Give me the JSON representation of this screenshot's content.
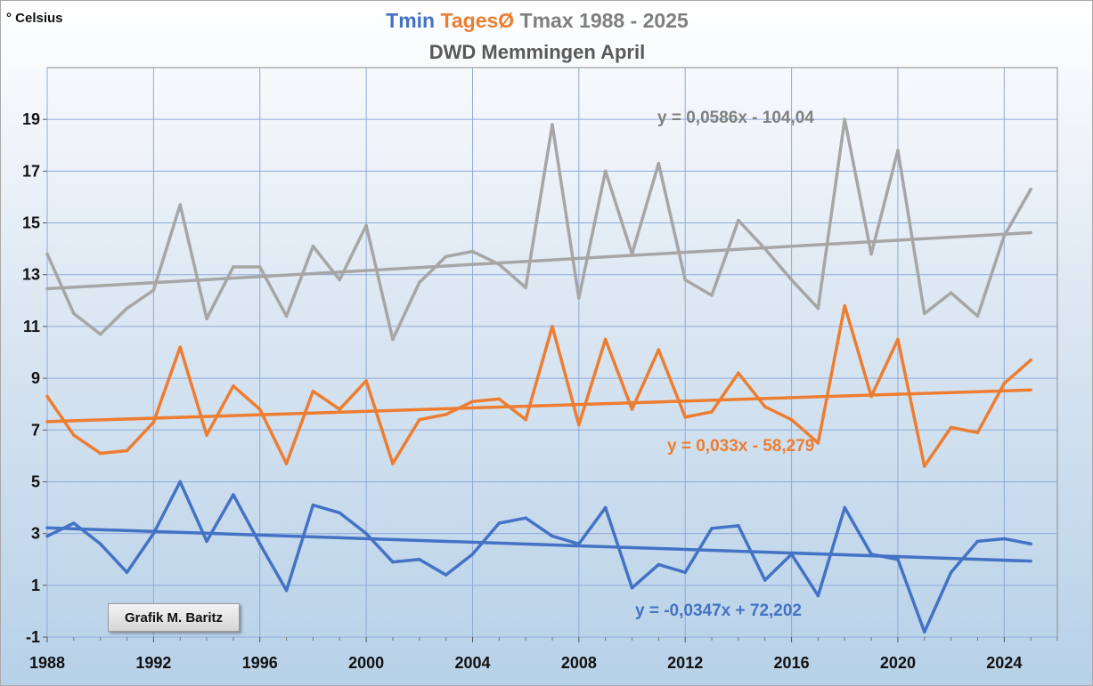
{
  "chart_data": {
    "type": "line",
    "title_parts": [
      {
        "text": "Tmin",
        "color": "#4472c4"
      },
      {
        "text": "TagesØ",
        "color": "#ed7d31"
      },
      {
        "text": "Tmax 1988 - 2025",
        "color": "#7f7f7f"
      }
    ],
    "subtitle": "DWD Memmingen April",
    "ylabel": "° Celsius",
    "xlim": [
      1988,
      2026
    ],
    "ylim": [
      -1,
      21
    ],
    "x_ticks": [
      1988,
      1992,
      1996,
      2000,
      2004,
      2008,
      2012,
      2016,
      2020,
      2024
    ],
    "y_ticks": [
      -1,
      1,
      3,
      5,
      7,
      9,
      11,
      13,
      15,
      17,
      19
    ],
    "grid": true,
    "x": [
      1988,
      1989,
      1990,
      1991,
      1992,
      1993,
      1994,
      1995,
      1996,
      1997,
      1998,
      1999,
      2000,
      2001,
      2002,
      2003,
      2004,
      2005,
      2006,
      2007,
      2008,
      2009,
      2010,
      2011,
      2012,
      2013,
      2014,
      2015,
      2016,
      2017,
      2018,
      2019,
      2020,
      2021,
      2022,
      2023,
      2024,
      2025
    ],
    "series": [
      {
        "key": "tmax",
        "color": "#a6a6a6",
        "values": [
          13.8,
          11.5,
          10.7,
          11.7,
          12.4,
          15.7,
          11.3,
          13.3,
          13.3,
          11.4,
          14.1,
          12.8,
          14.9,
          10.5,
          12.7,
          13.7,
          13.9,
          13.4,
          12.5,
          18.8,
          12.1,
          17.0,
          13.8,
          17.3,
          12.8,
          12.2,
          15.1,
          14.0,
          12.8,
          11.7,
          19.0,
          13.8,
          17.8,
          11.5,
          12.3,
          11.4,
          14.5,
          16.3
        ]
      },
      {
        "key": "tmean",
        "color": "#ed7d31",
        "values": [
          8.3,
          6.8,
          6.1,
          6.2,
          7.3,
          10.2,
          6.8,
          8.7,
          7.8,
          5.7,
          8.5,
          7.8,
          8.9,
          5.7,
          7.4,
          7.6,
          8.1,
          8.2,
          7.4,
          11.0,
          7.2,
          10.5,
          7.8,
          10.1,
          7.5,
          7.7,
          9.2,
          7.9,
          7.4,
          6.5,
          11.8,
          8.3,
          10.5,
          5.6,
          7.1,
          6.9,
          8.8,
          9.7
        ]
      },
      {
        "key": "tmin",
        "color": "#4472c4",
        "values": [
          2.9,
          3.4,
          2.6,
          1.5,
          3.0,
          5.0,
          2.7,
          4.5,
          2.6,
          0.8,
          4.1,
          3.8,
          3.0,
          1.9,
          2.0,
          1.4,
          2.2,
          3.4,
          3.6,
          2.9,
          2.6,
          4.0,
          0.9,
          1.8,
          1.5,
          3.2,
          3.3,
          1.2,
          2.2,
          0.6,
          4.0,
          2.2,
          2.0,
          -0.8,
          1.5,
          2.7,
          2.8,
          2.6
        ]
      }
    ],
    "trendlines": [
      {
        "series": "tmax",
        "slope": 0.0586,
        "intercept": -104.04,
        "label": "y = 0,0586x - 104,04",
        "color": "#a6a6a6",
        "label_color": "#808080"
      },
      {
        "series": "tmean",
        "slope": 0.033,
        "intercept": -58.279,
        "label": "y = 0,033x - 58,279",
        "color": "#ed7d31",
        "label_color": "#ed7d31"
      },
      {
        "series": "tmin",
        "slope": -0.0347,
        "intercept": 72.202,
        "label": "y = -0,0347x + 72,202",
        "color": "#4472c4",
        "label_color": "#4472c4"
      }
    ],
    "annotation": "Grafik M. Baritz"
  }
}
